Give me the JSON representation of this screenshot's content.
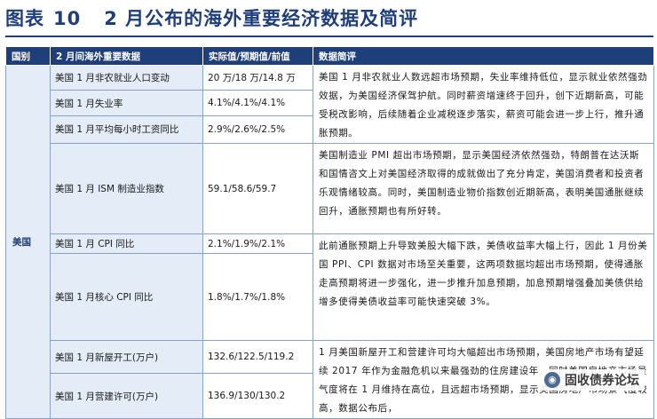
{
  "figure": {
    "label": "图表",
    "number": "10",
    "title": "2 月公布的海外重要经济数据及简评"
  },
  "table": {
    "headers": [
      "国别",
      "2 月间海外重要数据",
      "实际值/预期值/前值",
      "数据简评"
    ],
    "country": "美国",
    "rows": [
      {
        "indicator": "美国 1 月非农就业人口变动",
        "value": "20 万/18 万/14.8 万"
      },
      {
        "indicator": "美国 1 月失业率",
        "value": "4.1%/4.1%/4.1%"
      },
      {
        "indicator": "美国 1 月平均每小时工资同比",
        "value": "2.9%/2.6%/2.5%"
      },
      {
        "indicator": "美国 1 月 ISM 制造业指数",
        "value": "59.1/58.6/59.7"
      },
      {
        "indicator": "美国 1 月 CPI 同比",
        "value": "2.1%/1.9%/2.1%"
      },
      {
        "indicator": "美国 1 月核心 CPI 同比",
        "value": "1.8%/1.7%/1.8%"
      },
      {
        "indicator": "美国 1 月新屋开工(万户)",
        "value": "132.6/122.5/119.2"
      },
      {
        "indicator": "美国 1 月营建许可(万户)",
        "value": "136.9/130/130.2"
      }
    ],
    "comments": [
      "美国 1 月非农就业人数远超市场预期，失业率维持低位，显示就业依然强劲效据，为美国经济保驾护航。同时薪资增速终于回升，创下近期新高，可能受税改影响，后续随着企业减税逐步落实，薪资可能会进一步上行，推升通胀预期。",
      "美国制造业 PMI 超出市场预期，显示美国经济依然强劲，特朗普在达沃斯和国情咨文上对美国经济取得的成就做出了充分肯定，美国消费者和投资者乐观情绪较高。同时，美国制造业物价指数创近期新高，表明美国通胀继续回升，通胀预期也有所好转。",
      "此前通胀预期上升导致美股大幅下跌，美债收益率大幅上行，因此 1 月份美国 PPI、CPI 数据对市场至关重要，这两项数据均超出市场预期，使得通胀走高预期将进一步强化，进一步推升加息预期，加息预期增强叠加美债供给增多使得美债收益率可能快速突破 3%。",
      "1 月美国新屋开工和营建许可均大幅超出市场预期，美国房地产市场有望延续 2017 年作为金融危机以来最强劲的住房建设年，同时美国房地产市场景气度将在 1 月维持在高位，且远超市场预期，显示美国房地产市场景气度较高，数据公布后，"
    ]
  },
  "watermark": {
    "text": "固收债券论坛",
    "icon": "wechat-logo"
  }
}
